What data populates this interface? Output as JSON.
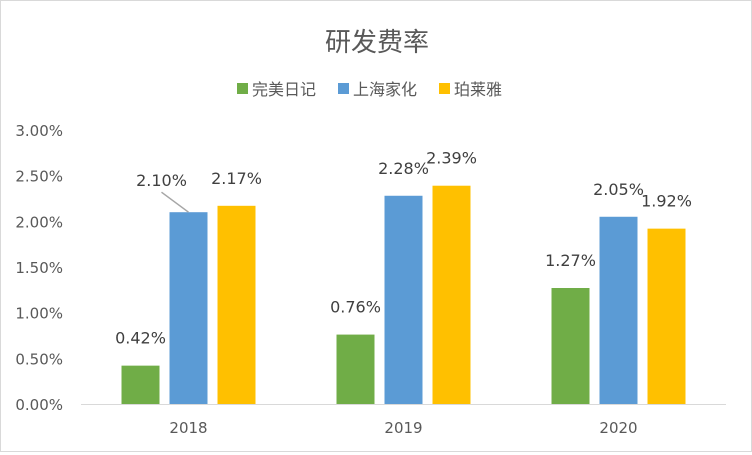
{
  "chart_data": {
    "type": "bar",
    "title": "研发费率",
    "categories": [
      "2018",
      "2019",
      "2020"
    ],
    "series": [
      {
        "name": "完美日记",
        "color": "#70AD47",
        "values": [
          0.42,
          0.76,
          1.27
        ],
        "labels": [
          "0.42%",
          "0.76%",
          "1.27%"
        ]
      },
      {
        "name": "上海家化",
        "color": "#5B9BD5",
        "values": [
          2.1,
          2.28,
          2.05
        ],
        "labels": [
          "2.10%",
          "2.28%",
          "2.05%"
        ]
      },
      {
        "name": "珀莱雅",
        "color": "#FFC000",
        "values": [
          2.17,
          2.39,
          1.92
        ],
        "labels": [
          "2.17%",
          "2.39%",
          "1.92%"
        ]
      }
    ],
    "ylim": [
      0,
      3
    ],
    "yticks": [
      "0.00%",
      "0.50%",
      "1.00%",
      "1.50%",
      "2.00%",
      "2.50%",
      "3.00%"
    ],
    "ytick_values": [
      0,
      0.5,
      1,
      1.5,
      2,
      2.5,
      3
    ],
    "unit": "%",
    "grid": false,
    "legend_position": "top"
  }
}
